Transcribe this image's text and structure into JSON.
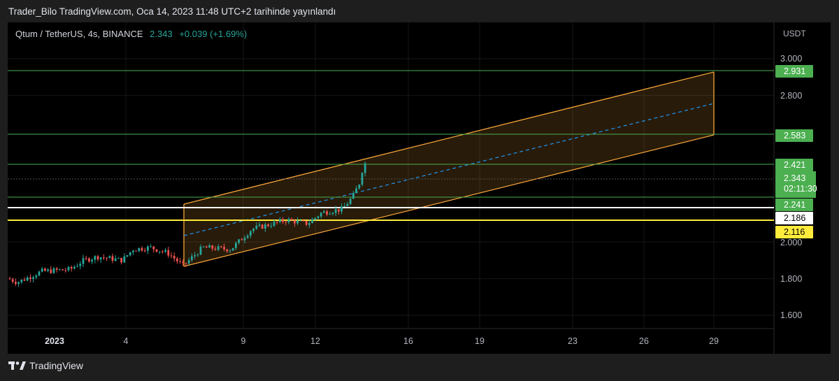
{
  "header": {
    "published_text": "Trader_Bilo TradingView.com, Oca 14, 2023 11:48 UTC+2 tarihinde yayınlandı"
  },
  "symbol": {
    "name": "Qtum / TetherUS, 4s, BINANCE",
    "price": "2.343",
    "change": "+0.039 (+1.69%)"
  },
  "price_axis": {
    "currency": "USDT",
    "ticks": [
      "3.000",
      "2.800",
      "2.000",
      "1.800",
      "1.600"
    ],
    "tick_values": [
      3.0,
      2.8,
      2.0,
      1.8,
      1.6
    ]
  },
  "time_axis": {
    "labels": [
      "2023",
      "4",
      "9",
      "12",
      "16",
      "19",
      "23",
      "26",
      "29"
    ]
  },
  "levels": [
    {
      "label": "2.931",
      "value": 2.931,
      "color": "#4caf50",
      "style": "green"
    },
    {
      "label": "2.583",
      "value": 2.583,
      "color": "#4caf50",
      "style": "green"
    },
    {
      "label": "2.421",
      "value": 2.421,
      "color": "#4caf50",
      "style": "green"
    },
    {
      "label": "2.241",
      "value": 2.241,
      "color": "#4caf50",
      "style": "green"
    },
    {
      "label": "2.186",
      "value": 2.186,
      "color": "#ffffff",
      "style": "white"
    },
    {
      "label": "2.116",
      "value": 2.116,
      "color": "#ffeb3b",
      "style": "yellow"
    }
  ],
  "current_price": {
    "label": "2.343",
    "countdown": "02:11:30",
    "value": 2.343
  },
  "colors": {
    "up": "#26a69a",
    "down": "#ef5350",
    "channel": "#f7a539",
    "midline": "#2196f3",
    "level": "#4caf50",
    "grid": "#1c1c1c"
  },
  "footer": {
    "brand": "TradingView"
  }
}
